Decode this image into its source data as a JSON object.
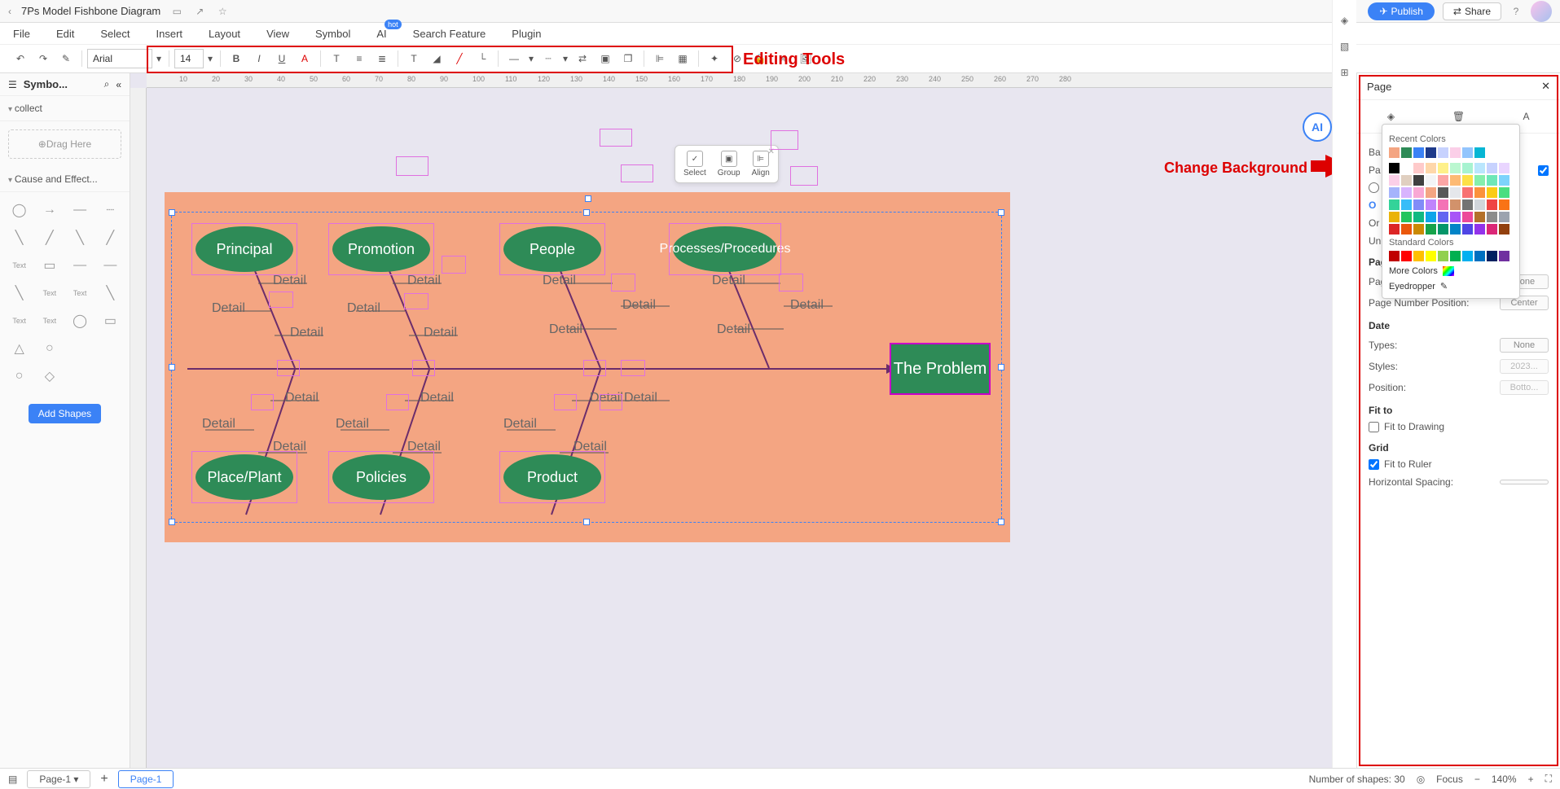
{
  "titlebar": {
    "doc_title": "7Ps Model Fishbone Diagram",
    "publish": "Publish",
    "share": "Share"
  },
  "menu": {
    "items": [
      "File",
      "Edit",
      "Select",
      "Insert",
      "Layout",
      "View",
      "Symbol",
      "AI",
      "Search Feature",
      "Plugin"
    ],
    "hot": "hot"
  },
  "toolbar": {
    "font": "Arial",
    "size": "14"
  },
  "annotations": {
    "editing_tools": "Editing Tools",
    "change_bg": "Change Background"
  },
  "left": {
    "title": "Symbo...",
    "collect": "collect",
    "drag": "Drag Here",
    "cause": "Cause and Effect...",
    "add_shapes": "Add Shapes"
  },
  "mini": {
    "select": "Select",
    "group": "Group",
    "align": "Align"
  },
  "diagram": {
    "bg_color": "#f4a582",
    "node_color": "#2e8b57",
    "spine_color": "#6b2d6b",
    "problem": "The Problem",
    "top_nodes": [
      "Principal",
      "Promotion",
      "People",
      "Processes/Procedures"
    ],
    "bottom_nodes": [
      "Place/Plant",
      "Policies",
      "Product"
    ],
    "detail": "Detail"
  },
  "right": {
    "title": "Page",
    "page_number": "Page Number",
    "pn_style": "Page Number Style:",
    "pn_style_val": "None",
    "pn_pos": "Page Number Position:",
    "pn_pos_val": "Center",
    "date": "Date",
    "types": "Types:",
    "types_val": "None",
    "styles": "Styles:",
    "styles_val": "2023...",
    "position": "Position:",
    "position_val": "Botto...",
    "fit_to": "Fit to",
    "fit_drawing": "Fit to Drawing",
    "grid": "Grid",
    "fit_ruler": "Fit to Ruler",
    "h_spacing": "Horizontal Spacing:",
    "unit_label": "Unit:",
    "ba_label": "Ba",
    "pa_label": "Pa",
    "or_label": "Or"
  },
  "color_popup": {
    "recent": "Recent Colors",
    "standard": "Standard Colors",
    "more": "More Colors",
    "eyedropper": "Eyedropper",
    "recent_colors": [
      "#f4a582",
      "#2e8b57",
      "#3b82f6",
      "#1e3a8a",
      "#c7d2fe",
      "#fbcfe8",
      "#93c5fd",
      "#06b6d4"
    ],
    "grid_colors": [
      "#000000",
      "#ffffff",
      "#fecaca",
      "#fed7aa",
      "#fef08a",
      "#bbf7d0",
      "#a7f3d0",
      "#bae6fd",
      "#c7d2fe",
      "#e9d5ff",
      "#fbcfe8",
      "#e0cfc0",
      "#404040",
      "#f3f4f6",
      "#fca5a5",
      "#fdba74",
      "#fde047",
      "#86efac",
      "#6ee7b7",
      "#7dd3fc",
      "#a5b4fc",
      "#d8b4fe",
      "#f9a8d4",
      "#f4a582",
      "#595959",
      "#e5e7eb",
      "#f87171",
      "#fb923c",
      "#facc15",
      "#4ade80",
      "#34d399",
      "#38bdf8",
      "#818cf8",
      "#c084fc",
      "#f472b6",
      "#d2926b",
      "#737373",
      "#d1d5db",
      "#ef4444",
      "#f97316",
      "#eab308",
      "#22c55e",
      "#10b981",
      "#0ea5e9",
      "#6366f1",
      "#a855f7",
      "#ec4899",
      "#b4712a",
      "#8c8c8c",
      "#9ca3af",
      "#dc2626",
      "#ea580c",
      "#ca8a04",
      "#16a34a",
      "#059669",
      "#0284c7",
      "#4f46e5",
      "#9333ea",
      "#db2777",
      "#92400e"
    ],
    "standard_colors": [
      "#c00000",
      "#ff0000",
      "#ffc000",
      "#ffff00",
      "#92d050",
      "#00b050",
      "#00b0f0",
      "#0070c0",
      "#002060",
      "#7030a0"
    ]
  },
  "ruler": {
    "marks": [
      10,
      20,
      30,
      40,
      50,
      60,
      70,
      80,
      90,
      100,
      110,
      120,
      130,
      140,
      150,
      160,
      170,
      180,
      190,
      200,
      210,
      220,
      230,
      240,
      250,
      260,
      270,
      280
    ]
  },
  "bottom": {
    "page_dd": "Page-1",
    "page_tab": "Page-1",
    "shapes": "Number of shapes: 30",
    "focus": "Focus",
    "zoom": "140%"
  }
}
